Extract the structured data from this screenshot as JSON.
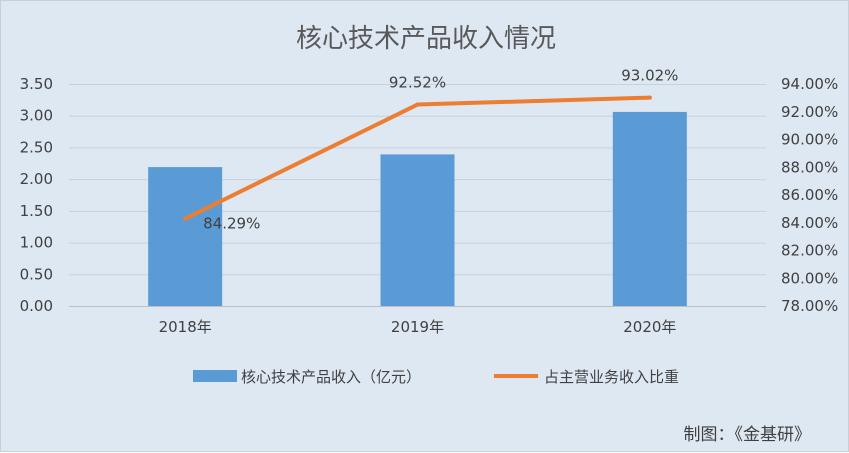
{
  "chart_data": {
    "type": "bar",
    "title": "核心技术产品收入情况",
    "categories": [
      "2018年",
      "2019年",
      "2020年"
    ],
    "series": [
      {
        "name": "核心技术产品收入（亿元）",
        "type": "bar",
        "axis": "left",
        "color": "#5b9bd5",
        "values": [
          2.19,
          2.39,
          3.06
        ]
      },
      {
        "name": "占主营业务收入比重",
        "type": "line",
        "axis": "right",
        "color": "#ed7d31",
        "values": [
          84.29,
          92.52,
          93.02
        ],
        "labels": [
          "84.29%",
          "92.52%",
          "93.02%"
        ]
      }
    ],
    "y_left": {
      "ylim": [
        0,
        3.5
      ],
      "ticks": [
        "0.00",
        "0.50",
        "1.00",
        "1.50",
        "2.00",
        "2.50",
        "3.00",
        "3.50"
      ]
    },
    "y_right": {
      "ylim": [
        78,
        94
      ],
      "ticks": [
        "78.00%",
        "80.00%",
        "82.00%",
        "84.00%",
        "86.00%",
        "88.00%",
        "90.00%",
        "92.00%",
        "94.00%"
      ]
    },
    "grid": true,
    "legend": "bottom"
  },
  "source": "制图：《金基研》"
}
